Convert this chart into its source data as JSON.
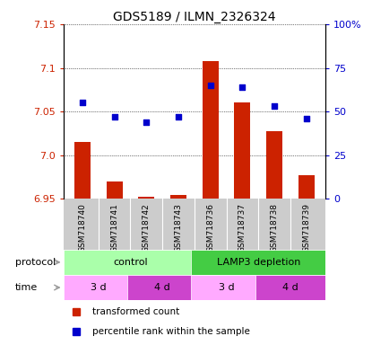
{
  "title": "GDS5189 / ILMN_2326324",
  "samples": [
    "GSM718740",
    "GSM718741",
    "GSM718742",
    "GSM718743",
    "GSM718736",
    "GSM718737",
    "GSM718738",
    "GSM718739"
  ],
  "bar_values": [
    7.015,
    6.97,
    6.953,
    6.955,
    7.108,
    7.06,
    7.028,
    6.977
  ],
  "dot_values": [
    55,
    47,
    44,
    47,
    65,
    64,
    53,
    46
  ],
  "bar_base": 6.95,
  "ylim_left": [
    6.95,
    7.15
  ],
  "ylim_right": [
    0,
    100
  ],
  "yticks_left": [
    6.95,
    7.0,
    7.05,
    7.1,
    7.15
  ],
  "yticks_right": [
    0,
    25,
    50,
    75,
    100
  ],
  "ytick_labels_right": [
    "0",
    "25",
    "50",
    "75",
    "100%"
  ],
  "bar_color": "#cc2200",
  "dot_color": "#0000cc",
  "bg_color": "#ffffff",
  "tick_color_left": "#cc2200",
  "tick_color_right": "#0000cc",
  "protocol_label": "protocol",
  "time_label": "time",
  "arrow_color": "#999999",
  "legend_bar_label": "transformed count",
  "legend_dot_label": "percentile rank within the sample",
  "proto_rects": [
    {
      "label": "control",
      "xstart": 0,
      "xend": 4,
      "color": "#aaffaa"
    },
    {
      "label": "LAMP3 depletion",
      "xstart": 4,
      "xend": 8,
      "color": "#44cc44"
    }
  ],
  "time_rects": [
    {
      "label": "3 d",
      "xstart": 0,
      "xend": 2,
      "color": "#ffaaff"
    },
    {
      "label": "4 d",
      "xstart": 2,
      "xend": 4,
      "color": "#cc44cc"
    },
    {
      "label": "3 d",
      "xstart": 4,
      "xend": 6,
      "color": "#ffaaff"
    },
    {
      "label": "4 d",
      "xstart": 6,
      "xend": 8,
      "color": "#cc44cc"
    }
  ],
  "xlabel_area_color": "#cccccc",
  "n_samples": 8
}
